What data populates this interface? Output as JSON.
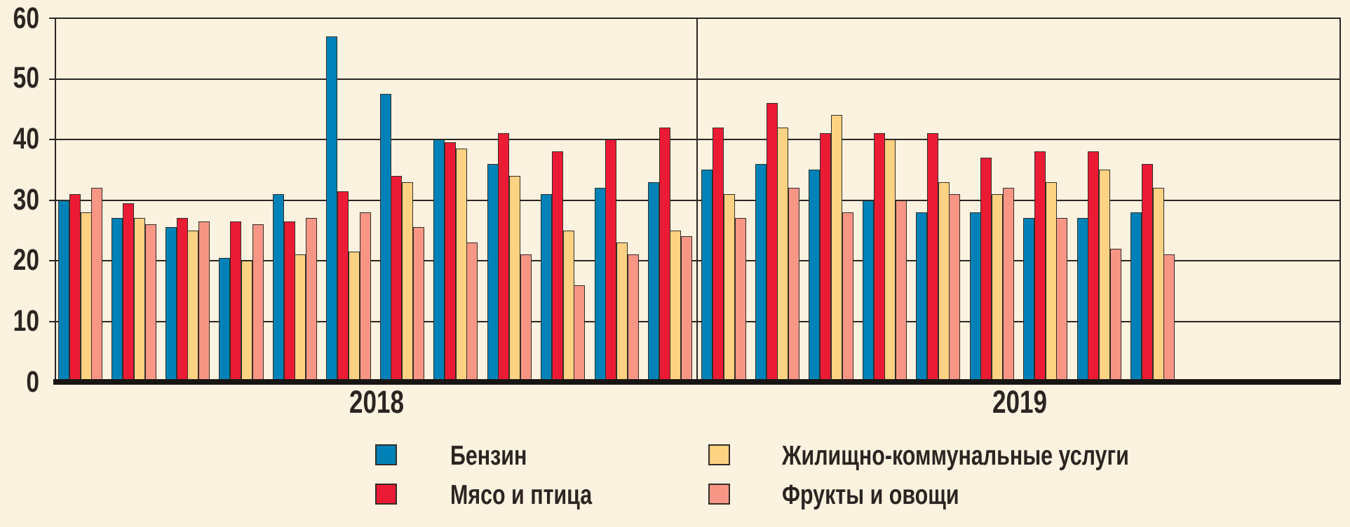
{
  "chart_data": {
    "type": "bar",
    "title": "",
    "xlabel": "",
    "ylabel": "",
    "ylim": [
      0,
      60
    ],
    "ytick_step": 10,
    "grid": true,
    "legend_position": "bottom",
    "sections": [
      {
        "label": "2018",
        "months": 12
      },
      {
        "label": "2019",
        "months": 9
      }
    ],
    "series": [
      {
        "name": "Бензин",
        "color": "#0082b8",
        "values": [
          30,
          27,
          25.5,
          20.5,
          31,
          57,
          47.5,
          40,
          36,
          31,
          32,
          33,
          35,
          36,
          35,
          30,
          28,
          28,
          27,
          27,
          28
        ]
      },
      {
        "name": "Мясо и птица",
        "color": "#ec1b35",
        "values": [
          31,
          29.5,
          27,
          26.5,
          26.5,
          31.5,
          34,
          39.5,
          41,
          38,
          40,
          42,
          42,
          46,
          41,
          41,
          41,
          37,
          38,
          38,
          36
        ]
      },
      {
        "name": "Жилищно-коммунальные услуги",
        "color": "#fed283",
        "values": [
          28,
          27,
          25,
          20,
          21,
          21.5,
          33,
          38.5,
          34,
          25,
          23,
          25,
          31,
          42,
          44,
          40,
          33,
          31,
          33,
          35,
          32
        ]
      },
      {
        "name": "Фрукты и овощи",
        "color": "#f79685",
        "values": [
          32,
          26,
          26.5,
          26,
          27,
          28,
          25.5,
          23,
          21,
          16,
          21,
          24,
          27,
          32,
          28,
          30,
          31,
          32,
          27,
          22,
          21
        ]
      }
    ]
  },
  "axis": {
    "y_ticks": [
      "60",
      "50",
      "40",
      "30",
      "20",
      "10",
      "0"
    ]
  },
  "colors": {
    "background": "#fbf2e0",
    "grid_line": "#2b2723",
    "bar_border": "#332e29",
    "baseline": "#181614",
    "text": "#2b2522"
  }
}
